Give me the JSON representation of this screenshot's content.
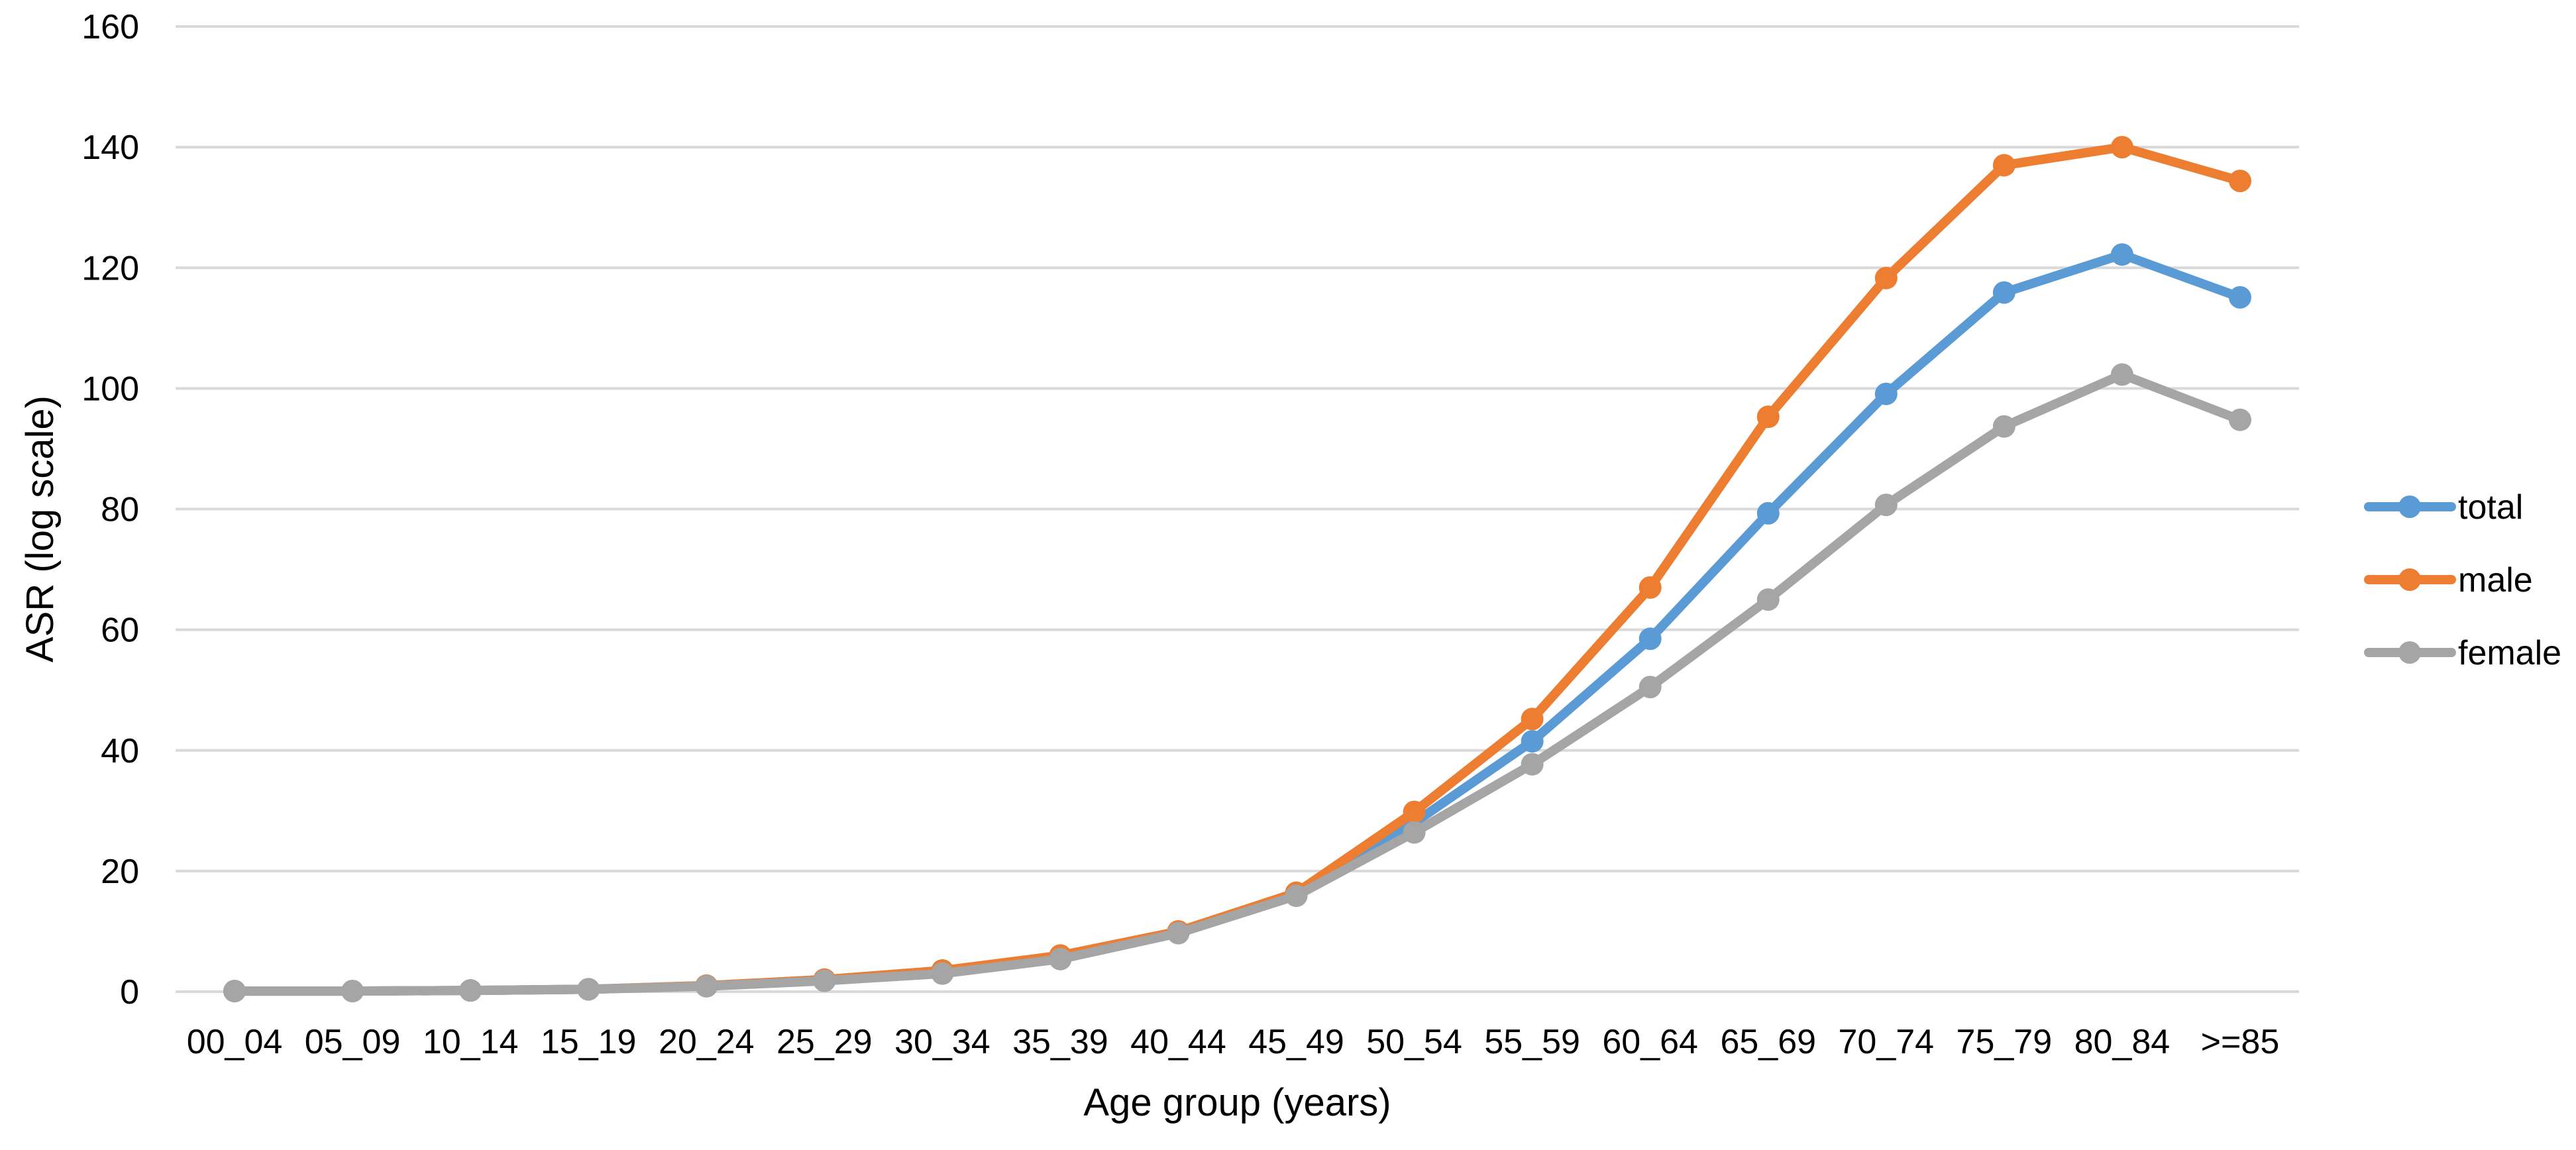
{
  "chart_data": {
    "type": "line",
    "title": "",
    "xlabel": "Age group (years)",
    "ylabel": "ASR (log scale)",
    "ylim": [
      0,
      160
    ],
    "yticks": [
      "0",
      "20",
      "40",
      "60",
      "80",
      "100",
      "120",
      "140",
      "160"
    ],
    "grid": true,
    "legend_position": "right",
    "categories": [
      "00_04",
      "05_09",
      "10_14",
      "15_19",
      "20_24",
      "25_29",
      "30_34",
      "35_39",
      "40_44",
      "45_49",
      "50_54",
      "55_59",
      "60_64",
      "65_69",
      "70_74",
      "75_79",
      "80_84",
      ">=85"
    ],
    "series": [
      {
        "name": "total",
        "color": "#5b9bd5",
        "values": [
          0.1,
          0.1,
          0.2,
          0.4,
          1.0,
          2.0,
          3.5,
          5.8,
          9.9,
          16.2,
          28.0,
          41.5,
          58.5,
          79.3,
          99.1,
          115.9,
          122.2,
          115.1
        ]
      },
      {
        "name": "male",
        "color": "#ed7d31",
        "values": [
          0.1,
          0.1,
          0.2,
          0.4,
          1.0,
          2.0,
          3.5,
          6.0,
          10.0,
          16.4,
          29.8,
          45.2,
          67.0,
          95.3,
          118.3,
          137.0,
          140.0,
          134.4
        ]
      },
      {
        "name": "female",
        "color": "#a5a5a5",
        "values": [
          0.1,
          0.1,
          0.2,
          0.4,
          0.9,
          1.8,
          3.0,
          5.4,
          9.7,
          15.9,
          26.4,
          37.7,
          50.5,
          65.0,
          80.7,
          93.7,
          102.3,
          94.8
        ]
      }
    ]
  }
}
